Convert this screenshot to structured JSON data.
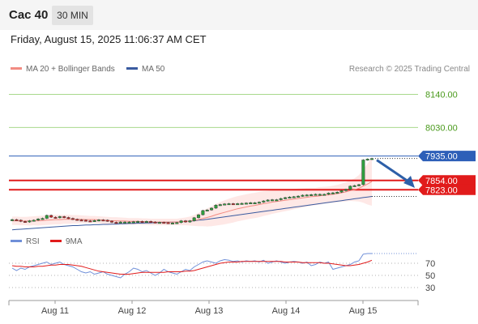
{
  "header": {
    "symbol": "Cac 40",
    "timeframe": "30 MIN"
  },
  "datetime": "Friday, August 15, 2025 11:06:37 AM CET",
  "legend": {
    "ma20": "MA 20 + Bollinger Bands",
    "ma50": "MA 50",
    "rsi": "RSI",
    "ma9": "9MA"
  },
  "credit": "Research © 2025 Trading Central",
  "colors": {
    "resistance_green": "#a8d88c",
    "pivot_blue": "#2d5fb8",
    "support_red": "#e11b1b",
    "candle_up": "#2e9e3e",
    "candle_down": "#c62828",
    "ma20": "#f28b82",
    "ma50": "#3a5ba0",
    "rsi": "#6f8fd8",
    "arrow": "#2d5fa8"
  },
  "chart_data": [
    {
      "type": "candlestick",
      "x_labels": [
        "Aug 11",
        "Aug 12",
        "Aug 13",
        "Aug 14",
        "Aug 15"
      ],
      "ylim": [
        7700,
        8195
      ],
      "levels": [
        {
          "value": 8140.0,
          "label": "8140.00",
          "kind": "resistance"
        },
        {
          "value": 8030.0,
          "label": "8030.00",
          "kind": "resistance"
        },
        {
          "value": 7935.0,
          "label": "7935.00",
          "kind": "pivot"
        },
        {
          "value": 7854.0,
          "label": "7854.00",
          "kind": "support"
        },
        {
          "value": 7823.0,
          "label": "7823.00",
          "kind": "support"
        }
      ],
      "close": [
        7724,
        7722,
        7718,
        7716,
        7720,
        7722,
        7726,
        7728,
        7738,
        7732,
        7730,
        7734,
        7731,
        7728,
        7725,
        7723,
        7722,
        7720,
        7719,
        7721,
        7723,
        7722,
        7719,
        7715,
        7714,
        7716,
        7716,
        7716,
        7717,
        7718,
        7716,
        7718,
        7716,
        7714,
        7715,
        7714,
        7713,
        7713,
        7714,
        7720,
        7716,
        7720,
        7730,
        7740,
        7754,
        7756,
        7762,
        7772,
        7774,
        7776,
        7777,
        7776,
        7777,
        7778,
        7779,
        7780,
        7780,
        7782,
        7786,
        7789,
        7790,
        7790,
        7794,
        7797,
        7799,
        7800,
        7802,
        7805,
        7806,
        7807,
        7808,
        7808,
        7808,
        7812,
        7813,
        7815,
        7820,
        7824,
        7835,
        7837,
        7840,
        7922,
        7925,
        7927
      ],
      "ma20": [
        7720,
        7720,
        7719,
        7719,
        7719,
        7720,
        7720,
        7721,
        7722,
        7723,
        7724,
        7724,
        7725,
        7725,
        7725,
        7725,
        7725,
        7724,
        7724,
        7724,
        7723,
        7722,
        7721,
        7720,
        7720,
        7719,
        7719,
        7718,
        7718,
        7718,
        7717,
        7717,
        7716,
        7716,
        7716,
        7716,
        7716,
        7716,
        7716,
        7717,
        7718,
        7719,
        7721,
        7724,
        7728,
        7731,
        7735,
        7740,
        7744,
        7748,
        7752,
        7756,
        7760,
        7763,
        7766,
        7769,
        7771,
        7774,
        7777,
        7779,
        7782,
        7784,
        7786,
        7788,
        7790,
        7792,
        7794,
        7796,
        7798,
        7800,
        7801,
        7803,
        7805,
        7806,
        7808,
        7810,
        7813,
        7816,
        7820,
        7823,
        7828,
        7835,
        7842,
        7850
      ],
      "ma50": [
        7690,
        7691,
        7692,
        7693,
        7694,
        7695,
        7696,
        7697,
        7698,
        7699,
        7700,
        7701,
        7702,
        7703,
        7704,
        7704,
        7705,
        7706,
        7706,
        7707,
        7707,
        7708,
        7708,
        7709,
        7709,
        7710,
        7710,
        7711,
        7711,
        7712,
        7712,
        7713,
        7713,
        7714,
        7714,
        7715,
        7715,
        7716,
        7716,
        7717,
        7718,
        7719,
        7720,
        7722,
        7723,
        7725,
        7727,
        7729,
        7731,
        7733,
        7735,
        7737,
        7739,
        7741,
        7743,
        7745,
        7747,
        7749,
        7751,
        7753,
        7755,
        7757,
        7759,
        7761,
        7763,
        7765,
        7767,
        7769,
        7771,
        7773,
        7775,
        7777,
        7779,
        7781,
        7783,
        7785,
        7787,
        7789,
        7791,
        7793,
        7795,
        7797,
        7799,
        7801
      ],
      "bb_width": [
        14,
        14,
        14,
        14,
        15,
        15,
        16,
        16,
        16,
        16,
        16,
        16,
        15,
        15,
        14,
        14,
        13,
        13,
        12,
        12,
        12,
        12,
        12,
        12,
        12,
        12,
        11,
        11,
        11,
        11,
        11,
        11,
        11,
        11,
        11,
        11,
        11,
        11,
        11,
        12,
        13,
        15,
        18,
        22,
        26,
        30,
        33,
        36,
        38,
        40,
        41,
        42,
        42,
        42,
        42,
        42,
        42,
        42,
        41,
        40,
        39,
        38,
        37,
        36,
        35,
        34,
        33,
        32,
        31,
        30,
        29,
        29,
        28,
        28,
        28,
        29,
        30,
        32,
        34,
        38,
        44,
        55,
        68,
        80
      ]
    },
    {
      "type": "line",
      "ylim": [
        10,
        90
      ],
      "yticks": [
        70,
        50,
        30
      ],
      "series": [
        {
          "name": "RSI",
          "values": [
            62,
            58,
            62,
            60,
            64,
            66,
            68,
            70,
            72,
            68,
            70,
            72,
            68,
            66,
            64,
            60,
            56,
            54,
            56,
            52,
            54,
            56,
            52,
            50,
            48,
            46,
            52,
            56,
            62,
            60,
            56,
            58,
            54,
            50,
            54,
            60,
            56,
            54,
            52,
            56,
            60,
            58,
            64,
            68,
            72,
            74,
            72,
            70,
            74,
            76,
            75,
            73,
            74,
            72,
            74,
            73,
            74,
            72,
            75,
            70,
            72,
            74,
            72,
            70,
            72,
            73,
            72,
            70,
            72,
            66,
            68,
            72,
            70,
            72,
            60,
            62,
            64,
            66,
            68,
            72,
            74,
            85,
            86,
            86
          ]
        },
        {
          "name": "9MA",
          "values": [
            66,
            65,
            65,
            64,
            64,
            64,
            65,
            65,
            66,
            67,
            67,
            68,
            68,
            68,
            67,
            66,
            65,
            63,
            61,
            59,
            57,
            56,
            55,
            54,
            53,
            52,
            52,
            52,
            53,
            54,
            55,
            55,
            55,
            55,
            55,
            55,
            56,
            56,
            56,
            56,
            57,
            57,
            58,
            60,
            62,
            64,
            66,
            68,
            70,
            71,
            72,
            72,
            72,
            73,
            73,
            73,
            73,
            73,
            73,
            73,
            73,
            73,
            73,
            72,
            72,
            72,
            72,
            71,
            71,
            71,
            71,
            71,
            70,
            70,
            69,
            68,
            67,
            66,
            66,
            67,
            68,
            70,
            72,
            75
          ]
        }
      ]
    }
  ]
}
